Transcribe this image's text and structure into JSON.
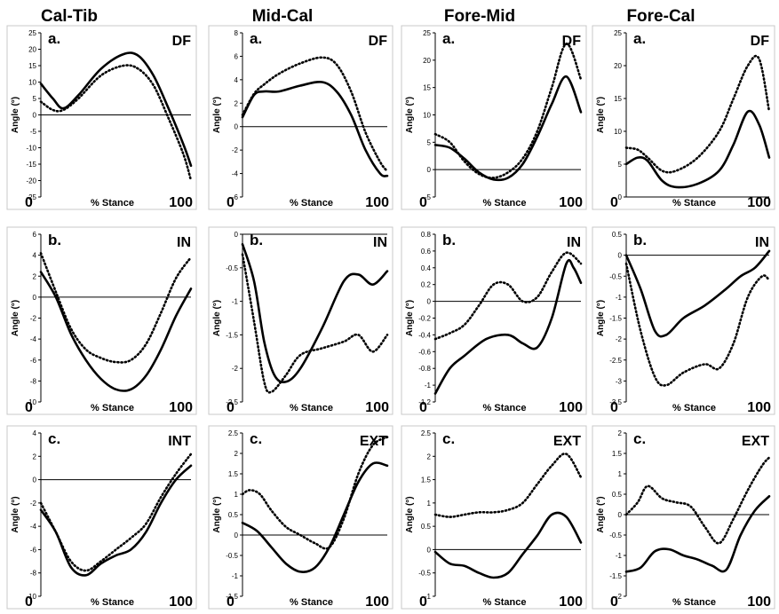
{
  "chart_data": [
    {
      "type": "line",
      "column": "Cal-Tib",
      "panel": "a.",
      "direction": "DF",
      "ylabel": "Angle (°)",
      "xlabel": "% Stance",
      "x_start": "0",
      "x_end": "100",
      "ylim": [
        -25,
        25
      ],
      "ytick_step": 5,
      "series": [
        {
          "style": "solid",
          "x": [
            0,
            8,
            15,
            25,
            40,
            55,
            65,
            75,
            85,
            95,
            100
          ],
          "values": [
            9.5,
            5,
            2,
            6,
            14,
            18.5,
            18,
            12,
            2,
            -9,
            -15.5
          ]
        },
        {
          "style": "dotted",
          "x": [
            0,
            8,
            15,
            25,
            40,
            55,
            65,
            75,
            85,
            95,
            100
          ],
          "values": [
            4,
            1.5,
            1.5,
            5,
            12,
            15,
            14,
            9,
            -1,
            -12,
            -20
          ]
        }
      ]
    },
    {
      "type": "line",
      "column": "Mid-Cal",
      "panel": "a.",
      "direction": "DF",
      "ylabel": "Angle (°)",
      "xlabel": "% Stance",
      "x_start": "0",
      "x_end": "100",
      "ylim": [
        -6,
        8
      ],
      "ytick_step": 2,
      "series": [
        {
          "style": "solid",
          "x": [
            0,
            8,
            15,
            25,
            40,
            55,
            65,
            75,
            85,
            95,
            100
          ],
          "values": [
            0.8,
            2.7,
            3,
            3,
            3.5,
            3.8,
            3,
            1,
            -2,
            -4,
            -4.2
          ]
        },
        {
          "style": "dotted",
          "x": [
            0,
            8,
            15,
            25,
            40,
            55,
            65,
            75,
            85,
            95,
            100
          ],
          "values": [
            1,
            2.8,
            3.6,
            4.5,
            5.4,
            5.9,
            5.3,
            3,
            -0.5,
            -3,
            -3.8
          ]
        }
      ]
    },
    {
      "type": "line",
      "column": "Fore-Mid",
      "panel": "a.",
      "direction": "DF",
      "ylabel": "Angle (°)",
      "xlabel": "% Stance",
      "x_start": "0",
      "x_end": "100",
      "ylim": [
        -5,
        25
      ],
      "ytick_step": 5,
      "series": [
        {
          "style": "solid",
          "x": [
            0,
            10,
            20,
            30,
            40,
            50,
            60,
            70,
            80,
            90,
            100
          ],
          "values": [
            4.5,
            4,
            2,
            -0.5,
            -1.8,
            -1.5,
            1,
            6,
            12,
            17,
            10.5
          ]
        },
        {
          "style": "dotted",
          "x": [
            0,
            10,
            20,
            30,
            40,
            50,
            60,
            70,
            80,
            90,
            100
          ],
          "values": [
            6.5,
            5,
            1.5,
            -0.8,
            -1.5,
            -0.5,
            2,
            7,
            15,
            23,
            16.5
          ]
        }
      ]
    },
    {
      "type": "line",
      "column": "Fore-Cal",
      "panel": "a.",
      "direction": "DF",
      "ylabel": "Angle (°)",
      "xlabel": "% Stance",
      "x_start": "0",
      "x_end": "100",
      "ylim": [
        0,
        25
      ],
      "ytick_step": 5,
      "series": [
        {
          "style": "solid",
          "x": [
            0,
            8,
            15,
            25,
            35,
            50,
            65,
            75,
            85,
            93,
            100
          ],
          "values": [
            5,
            6,
            5.5,
            2.5,
            1.5,
            2,
            4,
            8,
            13,
            11,
            6
          ]
        },
        {
          "style": "dotted",
          "x": [
            0,
            8,
            15,
            25,
            35,
            50,
            65,
            75,
            85,
            93,
            100
          ],
          "values": [
            7.5,
            7.2,
            6,
            4,
            4,
            6,
            10,
            15,
            20,
            21,
            13
          ]
        }
      ]
    },
    {
      "type": "line",
      "column": "Cal-Tib",
      "panel": "b.",
      "direction": "IN",
      "ylabel": "Angle (°)",
      "xlabel": "% Stance",
      "x_start": "0",
      "x_end": "100",
      "ylim": [
        -10,
        6
      ],
      "ytick_step": 2,
      "series": [
        {
          "style": "solid",
          "x": [
            0,
            10,
            20,
            30,
            40,
            50,
            60,
            70,
            80,
            90,
            100
          ],
          "values": [
            2.4,
            0,
            -3.5,
            -6,
            -7.8,
            -8.8,
            -8.8,
            -7.5,
            -5,
            -1.8,
            0.8
          ]
        },
        {
          "style": "dotted",
          "x": [
            0,
            10,
            20,
            30,
            40,
            50,
            60,
            70,
            80,
            90,
            100
          ],
          "values": [
            4.2,
            0.5,
            -3,
            -5,
            -5.8,
            -6.2,
            -6,
            -4.5,
            -1.5,
            1.8,
            3.8
          ]
        }
      ]
    },
    {
      "type": "line",
      "column": "Mid-Cal",
      "panel": "b.",
      "direction": "IN",
      "ylabel": "Angle (°)",
      "xlabel": "% Stance",
      "x_start": "0",
      "x_end": "100",
      "ylim": [
        -2.5,
        0
      ],
      "ytick_step": 0.5,
      "series": [
        {
          "style": "solid",
          "x": [
            0,
            8,
            15,
            22,
            30,
            40,
            55,
            70,
            80,
            90,
            100
          ],
          "values": [
            -0.15,
            -0.7,
            -1.6,
            -2.1,
            -2.2,
            -2,
            -1.4,
            -0.7,
            -0.6,
            -0.75,
            -0.55
          ]
        },
        {
          "style": "dotted",
          "x": [
            0,
            8,
            15,
            20,
            30,
            40,
            55,
            70,
            80,
            90,
            100
          ],
          "values": [
            -0.3,
            -1.3,
            -2.2,
            -2.35,
            -2.1,
            -1.8,
            -1.7,
            -1.6,
            -1.5,
            -1.75,
            -1.5
          ]
        }
      ]
    },
    {
      "type": "line",
      "column": "Fore-Mid",
      "panel": "b.",
      "direction": "IN",
      "ylabel": "Angle (°)",
      "xlabel": "% Stance",
      "x_start": "0",
      "x_end": "100",
      "ylim": [
        -1.2,
        0.8
      ],
      "ytick_step": 0.2,
      "series": [
        {
          "style": "solid",
          "x": [
            0,
            10,
            20,
            35,
            50,
            60,
            70,
            80,
            90,
            95,
            100
          ],
          "values": [
            -1.1,
            -0.8,
            -0.65,
            -0.45,
            -0.4,
            -0.5,
            -0.55,
            -0.2,
            0.45,
            0.4,
            0.22
          ]
        },
        {
          "style": "dotted",
          "x": [
            0,
            10,
            20,
            30,
            40,
            50,
            60,
            70,
            80,
            90,
            100
          ],
          "values": [
            -0.45,
            -0.38,
            -0.28,
            -0.05,
            0.2,
            0.2,
            0.0,
            0.05,
            0.35,
            0.58,
            0.45
          ]
        }
      ]
    },
    {
      "type": "line",
      "column": "Fore-Cal",
      "panel": "b.",
      "direction": "IN",
      "ylabel": "Angle (°)",
      "xlabel": "% Stance",
      "x_start": "0",
      "x_end": "100",
      "ylim": [
        -3.5,
        0.5
      ],
      "ytick_step": 0.5,
      "series": [
        {
          "style": "solid",
          "x": [
            0,
            10,
            20,
            28,
            40,
            55,
            70,
            80,
            90,
            100
          ],
          "values": [
            0,
            -0.8,
            -1.8,
            -1.9,
            -1.5,
            -1.2,
            -0.8,
            -0.5,
            -0.3,
            0.1
          ]
        },
        {
          "style": "dotted",
          "x": [
            0,
            10,
            20,
            28,
            40,
            55,
            65,
            75,
            85,
            95,
            100
          ],
          "values": [
            -0.2,
            -1.8,
            -2.9,
            -3.1,
            -2.8,
            -2.6,
            -2.7,
            -2.1,
            -1.0,
            -0.5,
            -0.6
          ]
        }
      ]
    },
    {
      "type": "line",
      "column": "Cal-Tib",
      "panel": "c.",
      "direction": "INT",
      "ylabel": "Angle (°)",
      "xlabel": "% Stance",
      "x_start": "0",
      "x_end": "100",
      "ylim": [
        -10,
        4
      ],
      "ytick_step": 2,
      "series": [
        {
          "style": "solid",
          "x": [
            0,
            10,
            20,
            30,
            40,
            50,
            60,
            70,
            80,
            90,
            100
          ],
          "values": [
            -2.6,
            -4.5,
            -7.5,
            -8.2,
            -7.2,
            -6.5,
            -6,
            -4.5,
            -2,
            0,
            1.2
          ]
        },
        {
          "style": "dotted",
          "x": [
            0,
            10,
            20,
            30,
            40,
            50,
            60,
            70,
            80,
            90,
            100
          ],
          "values": [
            -2,
            -4.5,
            -7,
            -7.8,
            -7,
            -6,
            -5,
            -3.8,
            -1.5,
            0.5,
            2.2
          ]
        }
      ]
    },
    {
      "type": "line",
      "column": "Mid-Cal",
      "panel": "c.",
      "direction": "EXT",
      "ylabel": "Angle (°)",
      "xlabel": "% Stance",
      "x_start": "0",
      "x_end": "100",
      "ylim": [
        -1.5,
        2.5
      ],
      "ytick_step": 0.5,
      "series": [
        {
          "style": "solid",
          "x": [
            0,
            10,
            20,
            30,
            40,
            50,
            60,
            70,
            80,
            90,
            100
          ],
          "values": [
            0.3,
            0.1,
            -0.3,
            -0.7,
            -0.9,
            -0.8,
            -0.3,
            0.5,
            1.3,
            1.75,
            1.7
          ]
        },
        {
          "style": "dotted",
          "x": [
            0,
            5,
            12,
            20,
            30,
            40,
            50,
            60,
            70,
            80,
            90,
            100
          ],
          "values": [
            1.0,
            1.1,
            1.0,
            0.6,
            0.2,
            0,
            -0.2,
            -0.3,
            0.4,
            1.5,
            2.2,
            2.4
          ]
        }
      ]
    },
    {
      "type": "line",
      "column": "Fore-Mid",
      "panel": "c.",
      "direction": "EXT",
      "ylabel": "Angle (°)",
      "xlabel": "% Stance",
      "x_start": "0",
      "x_end": "100",
      "ylim": [
        -1,
        2.5
      ],
      "ytick_step": 0.5,
      "series": [
        {
          "style": "solid",
          "x": [
            0,
            10,
            20,
            30,
            40,
            50,
            60,
            70,
            80,
            90,
            100
          ],
          "values": [
            -0.05,
            -0.3,
            -0.35,
            -0.5,
            -0.6,
            -0.5,
            -0.1,
            0.3,
            0.75,
            0.7,
            0.15
          ]
        },
        {
          "style": "dotted",
          "x": [
            0,
            10,
            20,
            30,
            40,
            50,
            60,
            70,
            80,
            90,
            100
          ],
          "values": [
            0.75,
            0.7,
            0.75,
            0.8,
            0.8,
            0.85,
            1.0,
            1.4,
            1.8,
            2.05,
            1.55
          ]
        }
      ]
    },
    {
      "type": "line",
      "column": "Fore-Cal",
      "panel": "c.",
      "direction": "EXT",
      "ylabel": "Angle (°)",
      "xlabel": "% Stance",
      "x_start": "0",
      "x_end": "100",
      "ylim": [
        -2,
        2
      ],
      "ytick_step": 0.5,
      "series": [
        {
          "style": "solid",
          "x": [
            0,
            10,
            20,
            30,
            40,
            50,
            60,
            70,
            80,
            90,
            100
          ],
          "values": [
            -1.4,
            -1.3,
            -0.9,
            -0.85,
            -1.0,
            -1.1,
            -1.25,
            -1.35,
            -0.5,
            0.1,
            0.45
          ]
        },
        {
          "style": "dotted",
          "x": [
            0,
            8,
            15,
            25,
            35,
            45,
            55,
            65,
            75,
            85,
            95,
            100
          ],
          "values": [
            0.0,
            0.3,
            0.7,
            0.4,
            0.3,
            0.2,
            -0.3,
            -0.7,
            -0.1,
            0.6,
            1.2,
            1.4
          ]
        }
      ]
    }
  ],
  "column_titles": [
    "Cal-Tib",
    "Mid-Cal",
    "Fore-Mid",
    "Fore-Cal"
  ]
}
